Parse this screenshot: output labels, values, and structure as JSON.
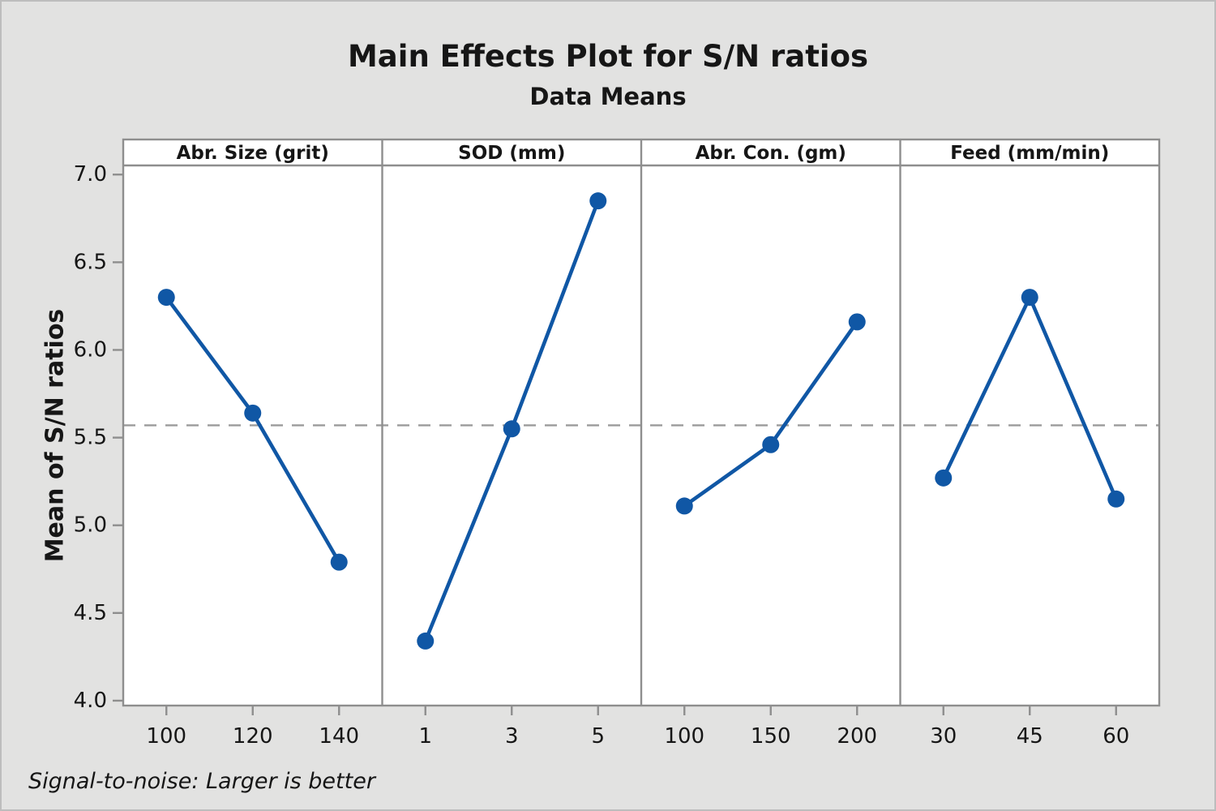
{
  "chart_data": {
    "type": "line",
    "title": "Main Effects Plot for S/N ratios",
    "subtitle": "Data Means",
    "ylabel": "Mean of S/N ratios",
    "footnote": "Signal-to-noise: Larger is better",
    "grid": false,
    "legend_position": "none",
    "ylim": [
      4.0,
      7.0
    ],
    "yticks": [
      "4.0",
      "4.5",
      "5.0",
      "5.5",
      "6.0",
      "6.5",
      "7.0"
    ],
    "reference_line_value": 5.57,
    "panels": [
      {
        "factor": "Abr. Size (grit)",
        "levels": [
          "100",
          "120",
          "140"
        ],
        "means": [
          6.3,
          5.64,
          4.79
        ]
      },
      {
        "factor": "SOD (mm)",
        "levels": [
          "1",
          "3",
          "5"
        ],
        "means": [
          4.34,
          5.55,
          6.85
        ]
      },
      {
        "factor": "Abr. Con. (gm)",
        "levels": [
          "100",
          "150",
          "200"
        ],
        "means": [
          5.11,
          5.46,
          6.16
        ]
      },
      {
        "factor": "Feed (mm/min)",
        "levels": [
          "30",
          "45",
          "60"
        ],
        "means": [
          5.27,
          6.3,
          5.15
        ]
      }
    ]
  },
  "colors": {
    "series": "#1057a5",
    "reference_dash": "#9a9a9a",
    "panel_border": "#8e8e8e",
    "canvas_background": "#e2e2e1",
    "panel_background": "#ffffff",
    "text": "#161616"
  }
}
